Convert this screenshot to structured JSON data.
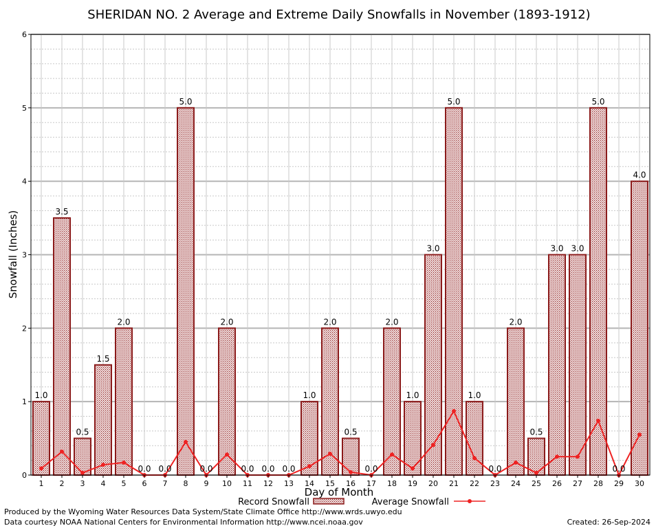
{
  "chart_data": {
    "type": "bar",
    "title": "SHERIDAN NO. 2 Average and Extreme Daily Snowfalls in November (1893-1912)",
    "xlabel": "Day of Month",
    "ylabel": "Snowfall (Inches)",
    "ylim": [
      0,
      6
    ],
    "yticks": [
      "0",
      "1",
      "2",
      "3",
      "4",
      "5",
      "6"
    ],
    "grid": true,
    "legend_position": "bottom",
    "categories": [
      "1",
      "2",
      "3",
      "4",
      "5",
      "6",
      "7",
      "8",
      "9",
      "10",
      "11",
      "12",
      "13",
      "14",
      "15",
      "16",
      "17",
      "18",
      "19",
      "20",
      "21",
      "22",
      "23",
      "24",
      "25",
      "26",
      "27",
      "28",
      "29",
      "30"
    ],
    "series": [
      {
        "name": "Record Snowfall",
        "kind": "bar",
        "color": "#8b1a1a",
        "values": [
          1.0,
          3.5,
          0.5,
          1.5,
          2.0,
          0.0,
          0.0,
          5.0,
          0.0,
          2.0,
          0.0,
          0.0,
          0.0,
          1.0,
          2.0,
          0.5,
          0.0,
          2.0,
          1.0,
          3.0,
          5.0,
          1.0,
          0.0,
          2.0,
          0.5,
          3.0,
          3.0,
          5.0,
          0.0,
          4.0
        ],
        "labels": [
          "1.0",
          "3.5",
          "0.5",
          "1.5",
          "2.0",
          "0.0",
          "0.0",
          "5.0",
          "0.0",
          "2.0",
          "0.0",
          "0.0",
          "0.0",
          "1.0",
          "2.0",
          "0.5",
          "0.0",
          "2.0",
          "1.0",
          "3.0",
          "5.0",
          "1.0",
          "0.0",
          "2.0",
          "0.5",
          "3.0",
          "3.0",
          "5.0",
          "0.0",
          "4.0"
        ]
      },
      {
        "name": "Average Snowfall",
        "kind": "line",
        "color": "#ee2222",
        "values": [
          0.09,
          0.32,
          0.03,
          0.14,
          0.17,
          0.0,
          0.0,
          0.45,
          0.0,
          0.28,
          0.0,
          0.0,
          0.0,
          0.12,
          0.29,
          0.04,
          0.0,
          0.28,
          0.09,
          0.41,
          0.87,
          0.23,
          0.0,
          0.17,
          0.03,
          0.25,
          0.25,
          0.74,
          0.0,
          0.55
        ]
      }
    ],
    "footer_left": [
      "Produced by the Wyoming Water Resources Data System/State Climate Office http://www.wrds.uwyo.edu",
      "Data courtesy NOAA National Centers for Environmental Information http://www.ncei.noaa.gov"
    ],
    "footer_right": "Created:  26-Sep-2024"
  }
}
